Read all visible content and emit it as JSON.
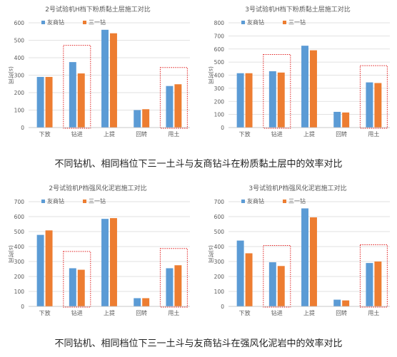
{
  "colors": {
    "series_a": "#5b9bd5",
    "series_b": "#ed7d31",
    "highlight": "#e02020",
    "grid": "#d9d9d9",
    "text": "#595959"
  },
  "captions": [
    "不同钻机、相同档位下三一土斗与友商钻斗在粉质黏土层中的效率对比",
    "不同钻机、相同档位下三一土斗与友商钻斗在强风化泥岩中的效率对比"
  ],
  "chart_data": [
    {
      "type": "bar",
      "title": "2号试验机H档下粉质黏土层施工对比",
      "ylabel": "(s)时间",
      "categories": [
        "下放",
        "钻进",
        "上提",
        "回转",
        "甩土"
      ],
      "series": [
        {
          "name": "友商钻",
          "values": [
            290,
            375,
            560,
            100,
            238
          ]
        },
        {
          "name": "三一钻",
          "values": [
            290,
            310,
            540,
            105,
            248
          ]
        }
      ],
      "ylim": [
        0,
        600
      ],
      "yticks": [
        0,
        100,
        200,
        300,
        400,
        500,
        600
      ],
      "highlight": [
        "钻进",
        "甩土"
      ],
      "grid": true,
      "legend": "top"
    },
    {
      "type": "bar",
      "title": "3号试验机H档下粉质黏土层施工对比",
      "ylabel": "(s)时间",
      "categories": [
        "下放",
        "钻进",
        "上提",
        "回转",
        "甩土"
      ],
      "series": [
        {
          "name": "友商钻",
          "values": [
            415,
            430,
            625,
            120,
            345
          ]
        },
        {
          "name": "三一钻",
          "values": [
            415,
            420,
            590,
            115,
            340
          ]
        }
      ],
      "ylim": [
        0,
        800
      ],
      "yticks": [
        0,
        100,
        200,
        300,
        400,
        500,
        600,
        700,
        800
      ],
      "highlight": [
        "钻进",
        "甩土"
      ],
      "grid": true,
      "legend": "top"
    },
    {
      "type": "bar",
      "title": "2号试验机P档强风化泥岩施工对比",
      "ylabel": "(s)时间",
      "categories": [
        "下放",
        "钻进",
        "上提",
        "回转",
        "甩土"
      ],
      "series": [
        {
          "name": "友商钻",
          "values": [
            478,
            255,
            585,
            55,
            255
          ]
        },
        {
          "name": "三一钻",
          "values": [
            508,
            245,
            590,
            55,
            275
          ]
        }
      ],
      "ylim": [
        0,
        700
      ],
      "yticks": [
        0,
        100,
        200,
        300,
        400,
        500,
        600,
        700
      ],
      "highlight": [
        "钻进",
        "甩土"
      ],
      "grid": true,
      "legend": "top"
    },
    {
      "type": "bar",
      "title": "3号试验机P档强风化泥岩施工对比",
      "ylabel": "(s)时间",
      "categories": [
        "下放",
        "钻进",
        "上提",
        "回转",
        "甩土"
      ],
      "series": [
        {
          "name": "友商钻",
          "values": [
            440,
            295,
            655,
            45,
            290
          ]
        },
        {
          "name": "三一钻",
          "values": [
            355,
            270,
            595,
            40,
            300
          ]
        }
      ],
      "ylim": [
        0,
        700
      ],
      "yticks": [
        0,
        100,
        200,
        300,
        400,
        500,
        600,
        700
      ],
      "highlight": [
        "钻进",
        "甩土"
      ],
      "grid": true,
      "legend": "top"
    }
  ]
}
